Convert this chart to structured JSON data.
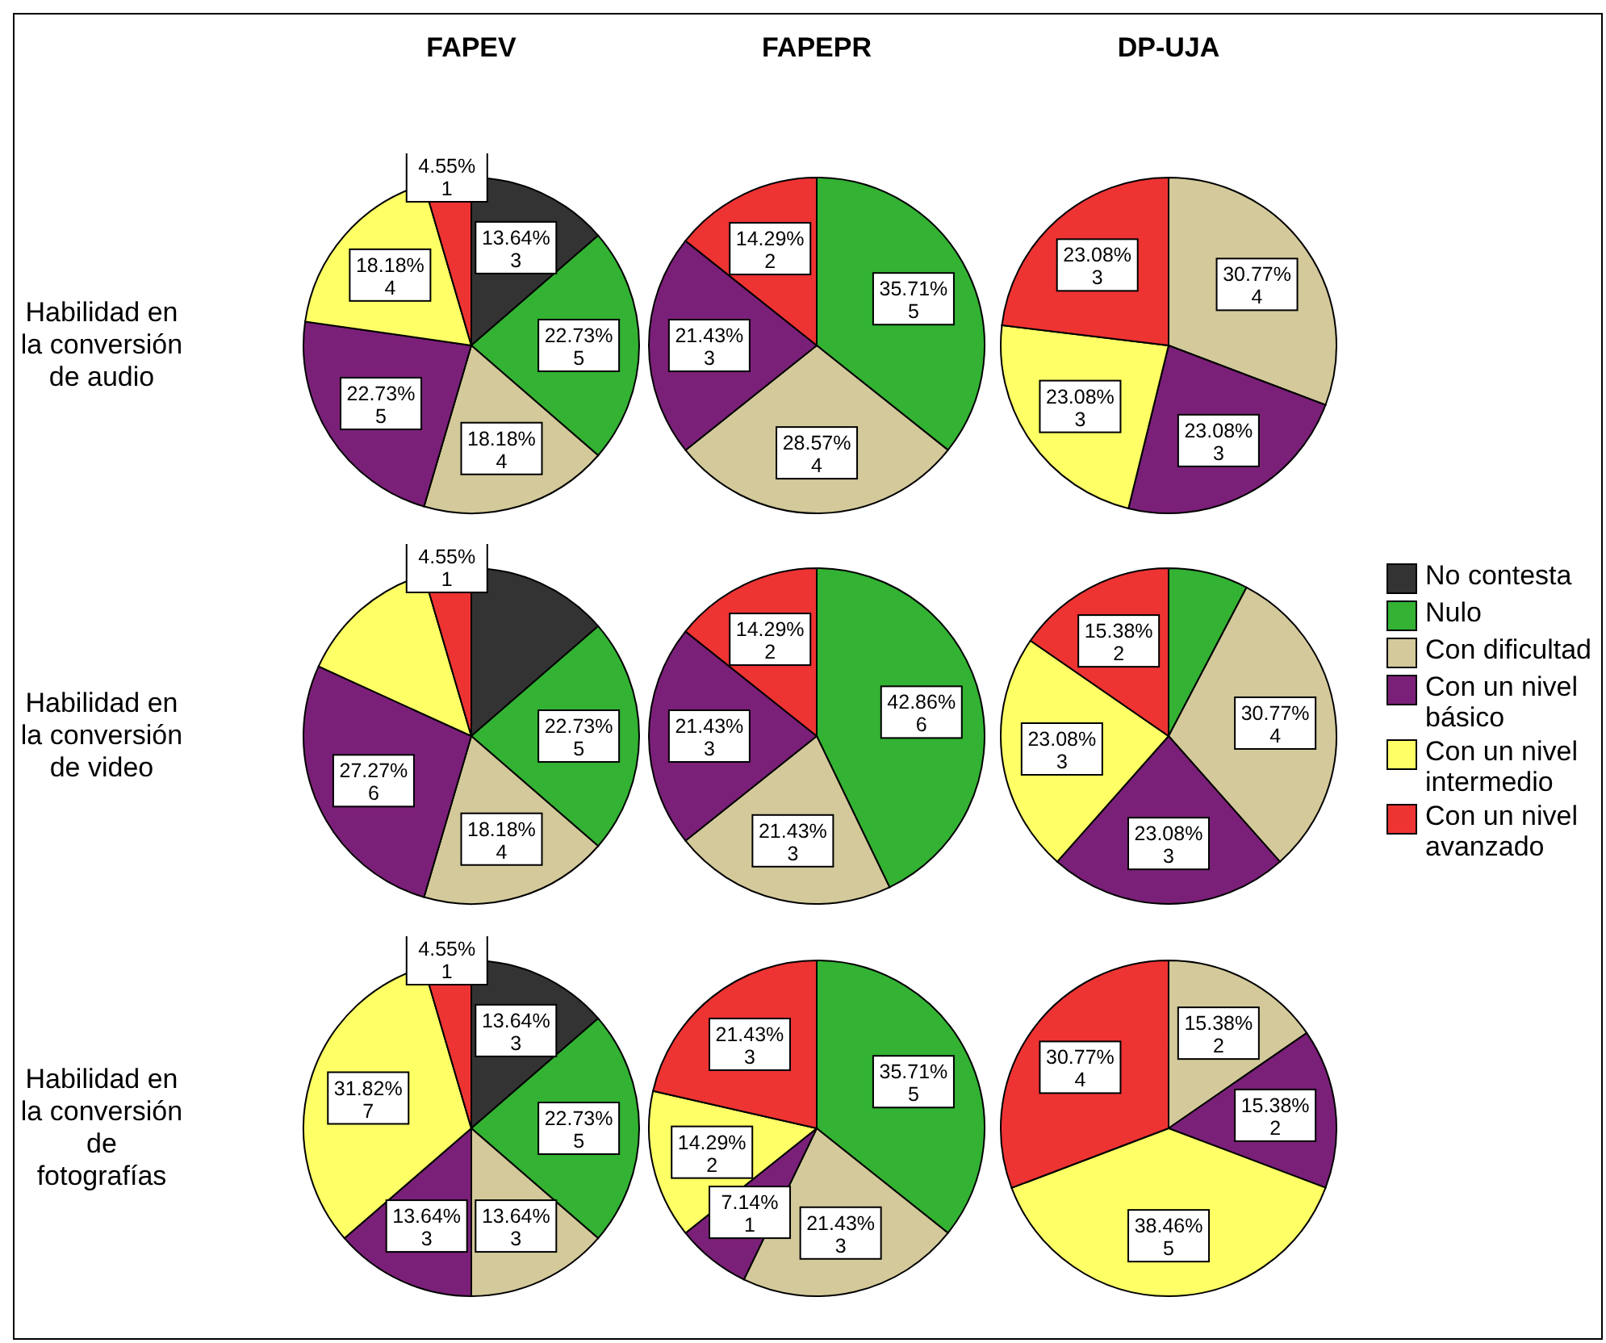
{
  "chart_data": [
    {
      "type": "pie",
      "title": "FAPEV",
      "ylabel": "Habilidad en\nla conversión\nde audio",
      "legend": "right",
      "categories": [
        "No contesta",
        "Nulo",
        "Con dificultad",
        "Con un nivel básico",
        "Con un nivel intermedio",
        "Con un nivel avanzado"
      ],
      "values": [
        13.64,
        22.73,
        18.18,
        22.73,
        18.18,
        4.55
      ],
      "colors": [
        "#333333",
        "#33b233",
        "#d3c99a",
        "#7b2079",
        "#ffff66",
        "#ee3333"
      ],
      "value_labels": [
        "13.64%\n3",
        "22.73%\n5",
        "18.18%\n4",
        "22.73%\n5",
        "18.18%\n4",
        "4.55%\n1"
      ]
    },
    {
      "type": "pie",
      "title": "FAPEPR",
      "categories": [
        null,
        null,
        null,
        null
      ],
      "values": [
        35.71,
        28.57,
        21.43,
        14.29
      ],
      "colors": [
        "#33b233",
        "#d3c99a",
        "#7b2079",
        "#ee3333"
      ],
      "value_labels": [
        "35.71%\n5",
        "28.57%\n4",
        "21.43%\n3",
        "14.29%\n2"
      ]
    },
    {
      "type": "pie",
      "title": "DP-UJA",
      "categories": [
        null,
        null,
        null,
        null
      ],
      "values": [
        30.77,
        23.08,
        23.08,
        23.08
      ],
      "colors": [
        "#d3c99a",
        "#7b2079",
        "#ffff66",
        "#ee3333"
      ],
      "value_labels": [
        "30.77%\n4",
        "23.08%\n3",
        "23.08%\n3",
        "23.08%\n3"
      ]
    },
    {
      "type": "pie",
      "ylabel": "Habilidad en\nla conversión\nde video",
      "categories": [
        null,
        null,
        null,
        null,
        null,
        null
      ],
      "values": [
        13.64,
        22.73,
        18.18,
        27.27,
        13.64,
        4.55
      ],
      "colors": [
        "#333333",
        "#33b233",
        "#d3c99a",
        "#7b2079",
        "#ffff66",
        "#ee3333"
      ],
      "value_labels": [
        null,
        "22.73%\n5",
        "18.18%\n4",
        "27.27%\n6",
        null,
        "4.55%\n1"
      ]
    },
    {
      "type": "pie",
      "categories": [
        null,
        null,
        null,
        null
      ],
      "values": [
        42.86,
        21.43,
        21.43,
        14.29
      ],
      "colors": [
        "#33b233",
        "#d3c99a",
        "#7b2079",
        "#ee3333"
      ],
      "value_labels": [
        "42.86%\n6",
        "21.43%\n3",
        "21.43%\n3",
        "14.29%\n2"
      ]
    },
    {
      "type": "pie",
      "categories": [
        null,
        null,
        null,
        null,
        null
      ],
      "values": [
        7.69,
        30.77,
        23.08,
        23.08,
        15.38
      ],
      "colors": [
        "#33b233",
        "#d3c99a",
        "#7b2079",
        "#ffff66",
        "#ee3333"
      ],
      "value_labels": [
        null,
        "30.77%\n4",
        "23.08%\n3",
        "23.08%\n3",
        "15.38%\n2"
      ]
    },
    {
      "type": "pie",
      "ylabel": "Habilidad en\nla conversión\nde\nfotografías",
      "categories": [
        null,
        null,
        null,
        null,
        null,
        null
      ],
      "values": [
        13.64,
        22.73,
        13.64,
        13.64,
        31.82,
        4.55
      ],
      "colors": [
        "#333333",
        "#33b233",
        "#d3c99a",
        "#7b2079",
        "#ffff66",
        "#ee3333"
      ],
      "value_labels": [
        "13.64%\n3",
        "22.73%\n5",
        "13.64%\n3",
        "13.64%\n3",
        "31.82%\n7",
        "4.55%\n1"
      ]
    },
    {
      "type": "pie",
      "categories": [
        null,
        null,
        null,
        null,
        null
      ],
      "values": [
        35.71,
        21.43,
        7.14,
        14.29,
        21.43
      ],
      "colors": [
        "#33b233",
        "#d3c99a",
        "#7b2079",
        "#ffff66",
        "#ee3333"
      ],
      "value_labels": [
        "35.71%\n5",
        "21.43%\n3",
        "7.14%\n1",
        "14.29%\n2",
        "21.43%\n3"
      ]
    },
    {
      "type": "pie",
      "categories": [
        null,
        null,
        null,
        null
      ],
      "values": [
        15.38,
        15.38,
        38.46,
        30.77
      ],
      "colors": [
        "#d3c99a",
        "#7b2079",
        "#ffff66",
        "#ee3333"
      ],
      "value_labels": [
        "15.38%\n2",
        "15.38%\n2",
        "38.46%\n5",
        "30.77%\n4"
      ]
    }
  ]
}
